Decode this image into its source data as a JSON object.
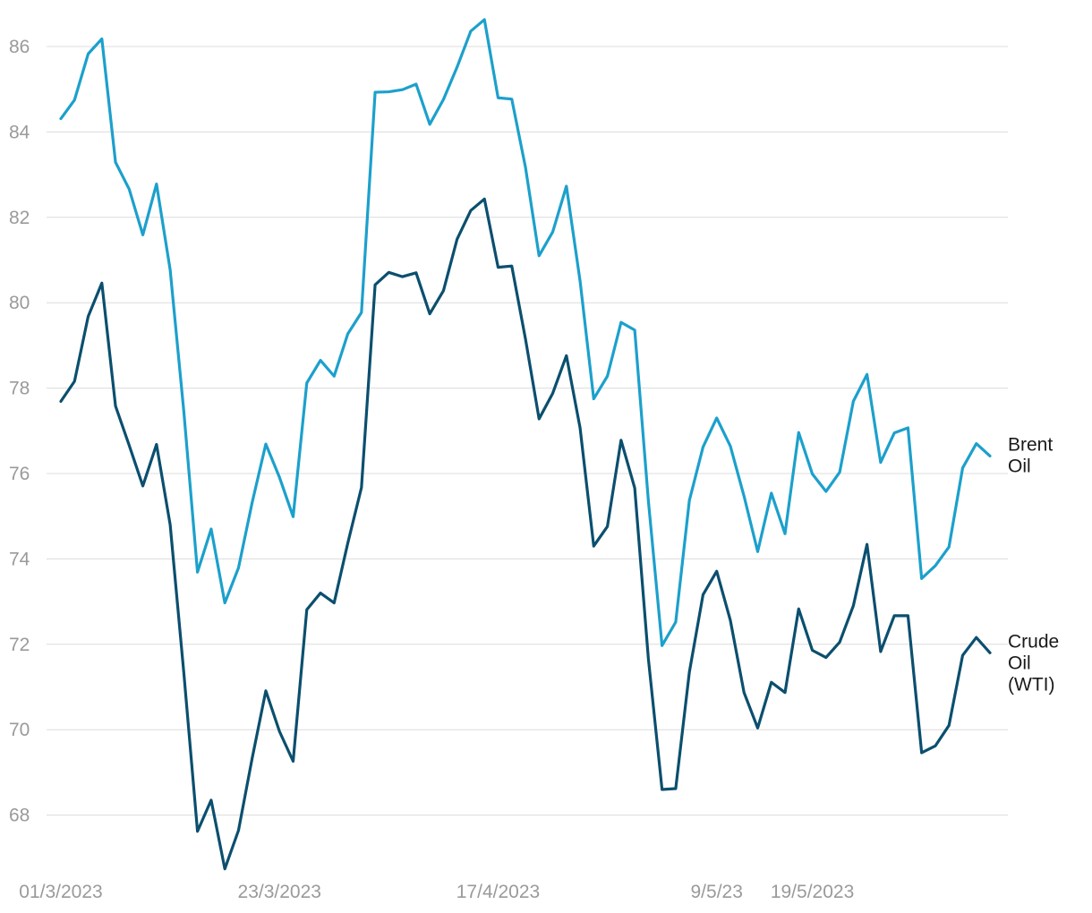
{
  "chart_data": {
    "type": "line",
    "title": "",
    "xlabel": "",
    "ylabel": "",
    "ylim": [
      66.6,
      86.8
    ],
    "grid": true,
    "y_ticks": [
      68,
      70,
      72,
      74,
      76,
      78,
      80,
      82,
      84,
      86
    ],
    "x_tick_labels": [
      {
        "label": "01/3/2023",
        "index": 0
      },
      {
        "label": "23/3/2023",
        "index": 16
      },
      {
        "label": "17/4/2023",
        "index": 32
      },
      {
        "label": "9/5/23",
        "index": 48
      },
      {
        "label": "19/5/2023",
        "index": 55
      }
    ],
    "series": [
      {
        "name": "Brent Oil",
        "label_lines": [
          "Brent",
          "Oil"
        ],
        "color": "#1ca0cc",
        "values": [
          84.31,
          84.75,
          85.83,
          86.18,
          83.29,
          82.66,
          81.59,
          82.78,
          80.77,
          77.45,
          73.69,
          74.7,
          72.97,
          73.79,
          75.32,
          76.69,
          75.91,
          74.99,
          78.12,
          78.65,
          78.28,
          79.27,
          79.77,
          84.93,
          84.94,
          84.99,
          85.12,
          84.18,
          84.76,
          85.52,
          86.36,
          86.63,
          84.8,
          84.77,
          83.18,
          81.1,
          81.66,
          82.73,
          80.51,
          77.75,
          78.28,
          79.54,
          79.36,
          75.36,
          71.97,
          72.52,
          75.37,
          76.62,
          77.3,
          76.64,
          75.47,
          74.17,
          75.54,
          74.59,
          76.96,
          75.99,
          75.58,
          76.03,
          77.69,
          78.32,
          76.26,
          76.95,
          77.07,
          73.54,
          73.84,
          74.28,
          76.13,
          76.7,
          76.41
        ]
      },
      {
        "name": "Crude Oil (WTI)",
        "label_lines": [
          "Crude",
          "Oil",
          "(WTI)"
        ],
        "color": "#0b4f6e",
        "values": [
          77.69,
          78.16,
          79.68,
          80.46,
          77.58,
          76.66,
          75.71,
          76.68,
          74.8,
          71.33,
          67.62,
          68.35,
          66.74,
          67.64,
          69.33,
          70.91,
          69.96,
          69.26,
          72.81,
          73.2,
          72.97,
          74.37,
          75.67,
          80.42,
          80.71,
          80.61,
          80.7,
          79.74,
          80.28,
          81.49,
          82.16,
          82.43,
          80.83,
          80.86,
          79.16,
          77.28,
          77.88,
          78.76,
          77.07,
          74.3,
          74.76,
          76.78,
          75.66,
          71.66,
          68.6,
          68.62,
          71.35,
          73.16,
          73.71,
          72.56,
          70.87,
          70.04,
          71.11,
          70.87,
          72.83,
          71.86,
          71.69,
          72.05,
          72.9,
          74.34,
          71.83,
          72.67,
          72.67,
          69.46,
          69.62,
          70.1,
          71.74,
          72.16,
          71.8
        ]
      }
    ]
  }
}
